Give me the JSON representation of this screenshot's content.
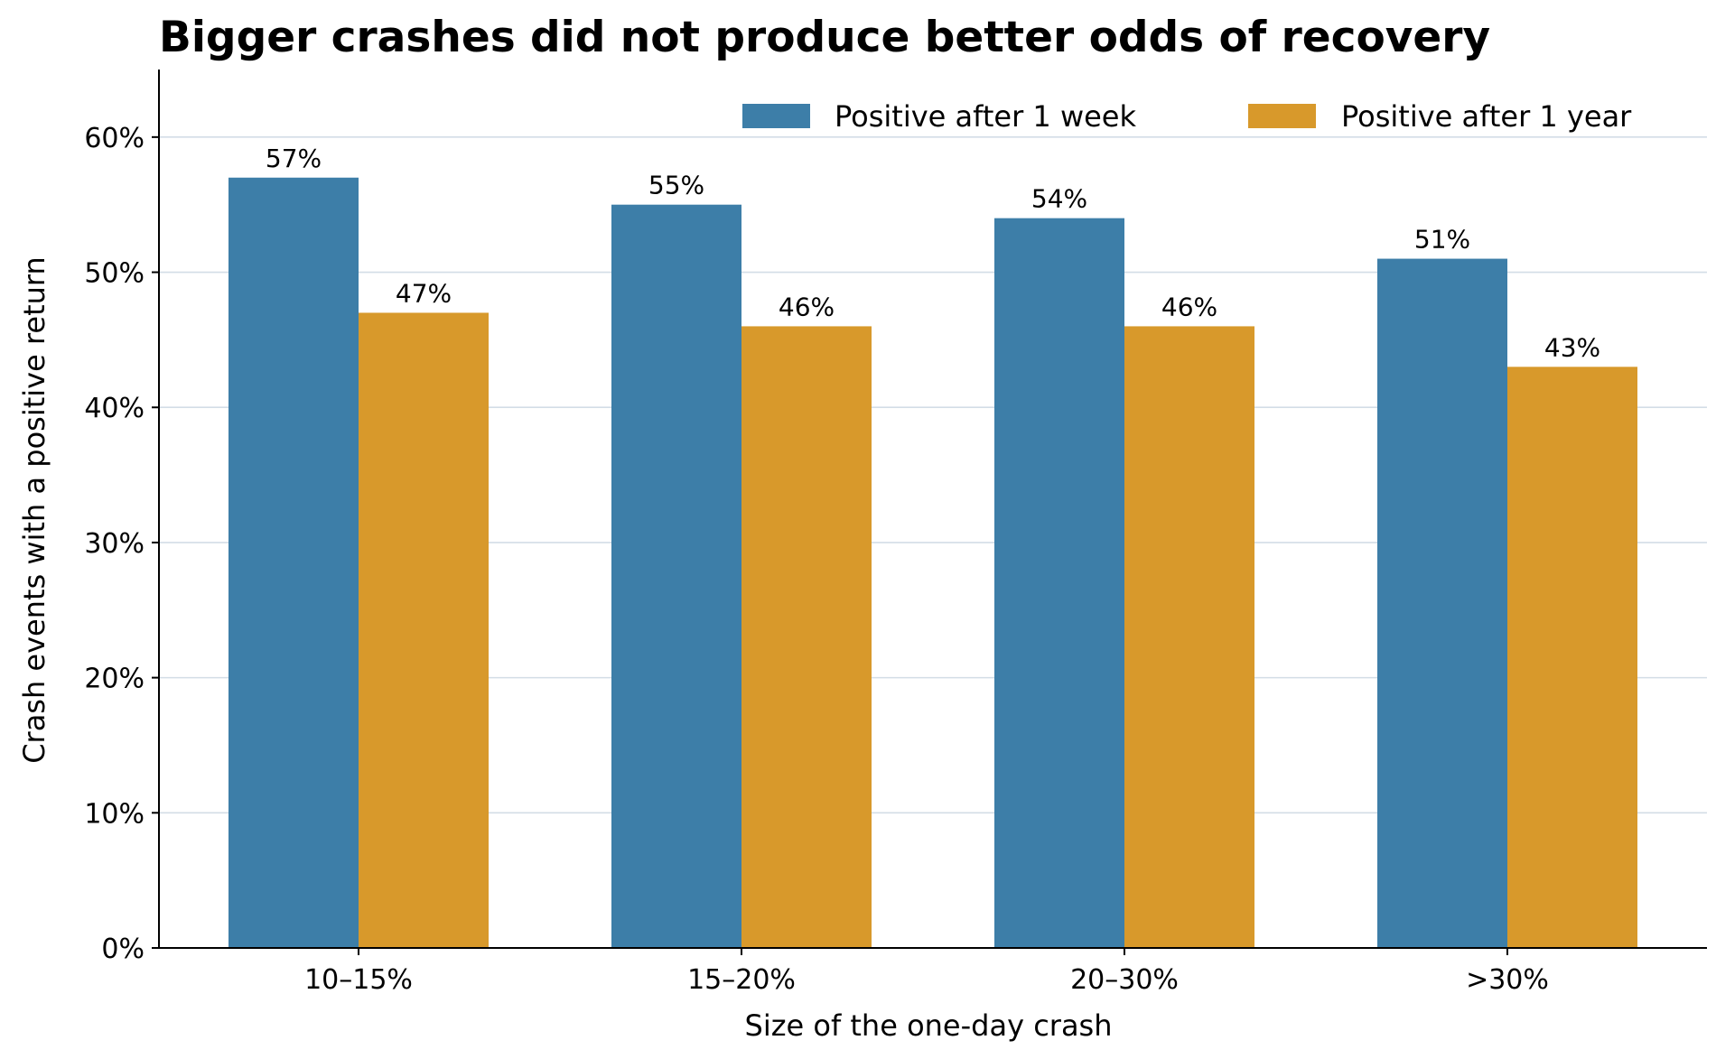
{
  "chart_data": {
    "type": "bar",
    "title": "Bigger crashes did not produce better odds of recovery",
    "xlabel": "Size of the one-day crash",
    "ylabel": "Crash events with a positive return",
    "categories": [
      "10–15%",
      "15–20%",
      "20–30%",
      ">30%"
    ],
    "series": [
      {
        "name": "Positive after 1 week",
        "values": [
          57,
          55,
          54,
          51
        ],
        "labels": [
          "57%",
          "55%",
          "54%",
          "51%"
        ],
        "color": "#3d7ea8"
      },
      {
        "name": "Positive after 1 year",
        "values": [
          47,
          46,
          46,
          43
        ],
        "labels": [
          "47%",
          "46%",
          "46%",
          "43%"
        ],
        "color": "#d8992b"
      }
    ],
    "ylim": [
      0,
      65
    ],
    "yticks": [
      0,
      10,
      20,
      30,
      40,
      50,
      60
    ],
    "ytick_labels": [
      "0%",
      "10%",
      "20%",
      "30%",
      "40%",
      "50%",
      "60%"
    ],
    "grid": "horizontal",
    "grid_color": "#d3dde6",
    "legend_position": "top-right"
  }
}
